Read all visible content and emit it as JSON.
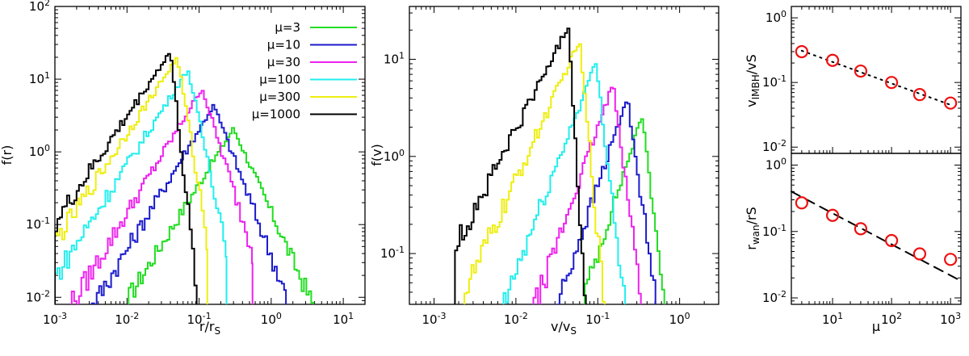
{
  "chart_data": [
    {
      "id": "panel_fr",
      "type": "line",
      "step": true,
      "xscale": "log",
      "yscale": "log",
      "xlabel": "r/rS",
      "ylabel": "f(r)",
      "xlim": [
        0.001,
        20
      ],
      "ylim": [
        0.008,
        100
      ],
      "xticks": [
        "10-3",
        "10-2",
        "10-1",
        "100",
        "101"
      ],
      "yticks": [
        "10-2",
        "10-1",
        "100",
        "101",
        "102"
      ],
      "legend": "top-right",
      "series": [
        {
          "name": "μ=3",
          "color": "#22dd22",
          "peak_x": 0.3,
          "peak_y": 2.1,
          "left_slope": 1.6,
          "right_slope": 2.2,
          "x_start": 0.0105,
          "x_end": 4.0
        },
        {
          "name": "μ=10",
          "color": "#1b1bcc",
          "peak_x": 0.16,
          "peak_y": 4.4,
          "left_slope": 1.65,
          "right_slope": 2.6,
          "x_start": 0.0012,
          "x_end": 1.6
        },
        {
          "name": "μ=30",
          "color": "#ee22ee",
          "peak_x": 0.11,
          "peak_y": 7.5,
          "left_slope": 1.65,
          "right_slope": 3.2,
          "x_start": 0.001,
          "x_end": 0.55
        },
        {
          "name": "μ=100",
          "color": "#22eeee",
          "peak_x": 0.07,
          "peak_y": 13.5,
          "left_slope": 1.55,
          "right_slope": 4.5,
          "x_start": 0.001,
          "x_end": 0.24
        },
        {
          "name": "μ=300",
          "color": "#eeee11",
          "peak_x": 0.05,
          "peak_y": 20,
          "left_slope": 1.5,
          "right_slope": 6.0,
          "x_start": 0.001,
          "x_end": 0.13
        },
        {
          "name": "μ=1000",
          "color": "#000000",
          "peak_x": 0.04,
          "peak_y": 24,
          "left_slope": 1.48,
          "right_slope": 9.0,
          "x_start": 0.001,
          "x_end": 0.095
        }
      ]
    },
    {
      "id": "panel_fv",
      "type": "line",
      "step": true,
      "xscale": "log",
      "yscale": "log",
      "xlabel": "v/vS",
      "ylabel": "f(v)",
      "xlim": [
        0.0005,
        3
      ],
      "ylim": [
        0.03,
        35
      ],
      "xticks": [
        "10-3",
        "10-2",
        "10-1",
        "100"
      ],
      "yticks": [
        "10-1",
        "100",
        "101"
      ],
      "series": [
        {
          "name": "μ=3",
          "color": "#22dd22",
          "peak_x": 0.35,
          "peak_y": 2.6,
          "left_slope": 2.6,
          "right_slope": 7.0,
          "x_start": 0.065,
          "x_end": 0.95
        },
        {
          "name": "μ=10",
          "color": "#1b1bcc",
          "peak_x": 0.23,
          "peak_y": 4.0,
          "left_slope": 2.5,
          "right_slope": 6.0,
          "x_start": 0.028,
          "x_end": 0.72
        },
        {
          "name": "μ=30",
          "color": "#ee22ee",
          "peak_x": 0.155,
          "peak_y": 5.6,
          "left_slope": 2.4,
          "right_slope": 6.5,
          "x_start": 0.011,
          "x_end": 0.42
        },
        {
          "name": "μ=100",
          "color": "#22eeee",
          "peak_x": 0.095,
          "peak_y": 9.2,
          "left_slope": 2.2,
          "right_slope": 7.0,
          "x_start": 0.0032,
          "x_end": 0.24
        },
        {
          "name": "μ=300",
          "color": "#eeee11",
          "peak_x": 0.06,
          "peak_y": 15.5,
          "left_slope": 1.85,
          "right_slope": 9.0,
          "x_start": 0.0022,
          "x_end": 0.15
        },
        {
          "name": "μ=1000",
          "color": "#000000",
          "peak_x": 0.044,
          "peak_y": 22,
          "left_slope": 1.65,
          "right_slope": 14.0,
          "x_start": 0.0018,
          "x_end": 0.1
        }
      ]
    },
    {
      "id": "panel_vimbh",
      "type": "scatter",
      "xscale": "log",
      "yscale": "log",
      "ylabel": "vIMBH/vS",
      "xlim": [
        2,
        1500
      ],
      "ylim": [
        0.008,
        1.5
      ],
      "yticks": [
        "10-2",
        "10-1",
        "100"
      ],
      "points": {
        "x": [
          3,
          10,
          30,
          100,
          300,
          1000
        ],
        "y": [
          0.3,
          0.22,
          0.15,
          0.1,
          0.065,
          0.048
        ]
      },
      "fit": {
        "style": "dotted",
        "x_range": [
          3,
          1000
        ],
        "y_at_range": [
          0.31,
          0.045
        ]
      }
    },
    {
      "id": "panel_rwan",
      "type": "scatter",
      "xscale": "log",
      "yscale": "log",
      "xlabel": "μ",
      "ylabel": "rwan/rS",
      "xlim": [
        2,
        1500
      ],
      "ylim": [
        0.008,
        1.5
      ],
      "xticks": [
        "101",
        "102",
        "103"
      ],
      "yticks": [
        "10-2",
        "10-1",
        "100"
      ],
      "points": {
        "x": [
          3,
          10,
          30,
          100,
          300,
          1000
        ],
        "y": [
          0.27,
          0.175,
          0.11,
          0.073,
          0.046,
          0.038
        ]
      },
      "fit": {
        "style": "dashed",
        "x_range": [
          2,
          1500
        ],
        "y_at_range": [
          0.4,
          0.018
        ]
      }
    }
  ]
}
